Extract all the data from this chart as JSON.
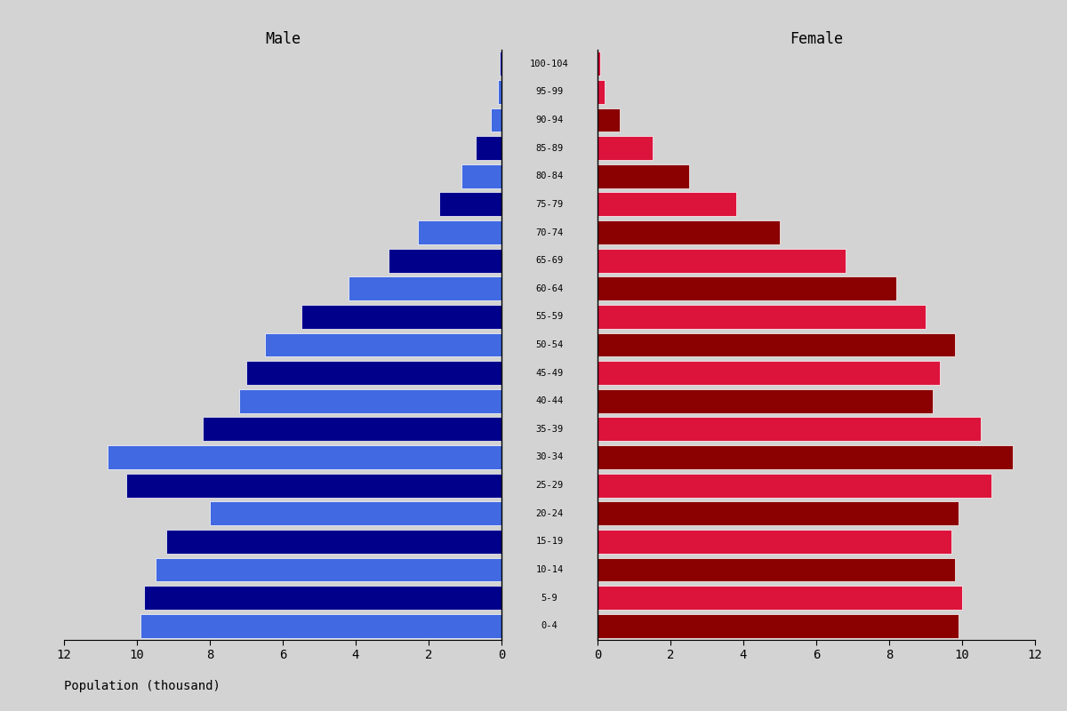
{
  "age_groups": [
    "0-4",
    "5-9",
    "10-14",
    "15-19",
    "20-24",
    "25-29",
    "30-34",
    "35-39",
    "40-44",
    "45-49",
    "50-54",
    "55-59",
    "60-64",
    "65-69",
    "70-74",
    "75-79",
    "80-84",
    "85-89",
    "90-94",
    "95-99",
    "100-104"
  ],
  "male": [
    9.9,
    9.8,
    9.5,
    9.2,
    8.0,
    10.3,
    10.8,
    8.2,
    7.2,
    7.0,
    6.5,
    5.5,
    4.2,
    3.1,
    2.3,
    1.7,
    1.1,
    0.7,
    0.3,
    0.1,
    0.05
  ],
  "female": [
    9.9,
    10.0,
    9.8,
    9.7,
    9.9,
    10.8,
    11.4,
    10.5,
    9.2,
    9.4,
    9.8,
    9.0,
    8.2,
    6.8,
    5.0,
    3.8,
    2.5,
    1.5,
    0.6,
    0.2,
    0.08
  ],
  "male_colors": [
    "#4169e1",
    "#00008b",
    "#4169e1",
    "#00008b",
    "#4169e1",
    "#00008b",
    "#4169e1",
    "#00008b",
    "#4169e1",
    "#00008b",
    "#4169e1",
    "#00008b",
    "#4169e1",
    "#00008b",
    "#4169e1",
    "#00008b",
    "#4169e1",
    "#00008b",
    "#4169e1",
    "#4169e1",
    "#0000cd"
  ],
  "female_colors": [
    "#8b0000",
    "#dc143c",
    "#8b0000",
    "#dc143c",
    "#8b0000",
    "#dc143c",
    "#8b0000",
    "#dc143c",
    "#8b0000",
    "#dc143c",
    "#8b0000",
    "#dc143c",
    "#8b0000",
    "#dc143c",
    "#8b0000",
    "#dc143c",
    "#8b0000",
    "#dc143c",
    "#8b0000",
    "#dc143c",
    "#dc143c"
  ],
  "xlim": 12,
  "xlabel": "Population (thousand)",
  "title_male": "Male",
  "title_female": "Female",
  "background_color": "#d3d3d3",
  "bar_height": 0.85
}
